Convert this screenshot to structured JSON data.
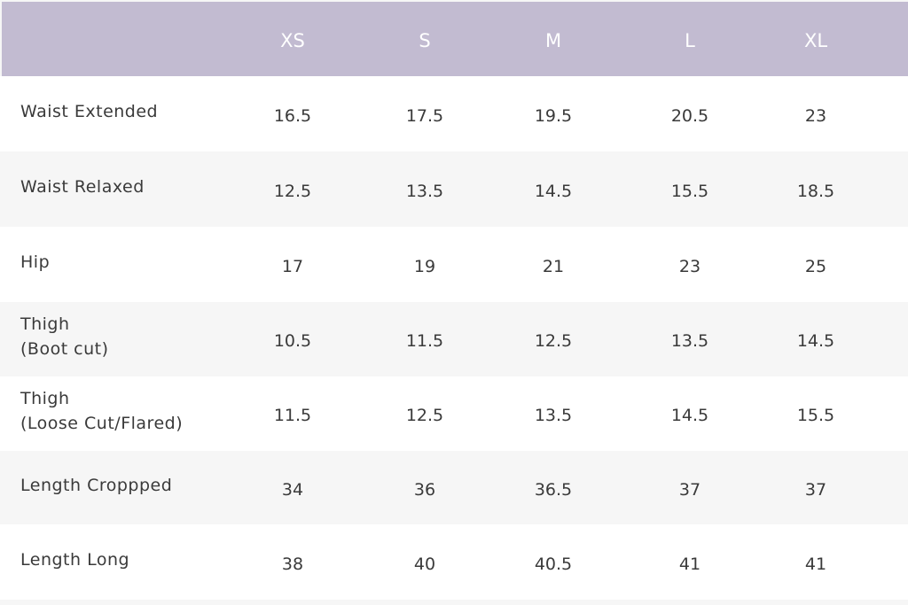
{
  "table": {
    "header": [
      "XS",
      "S",
      "M",
      "L",
      "XL"
    ],
    "rows": [
      {
        "label": [
          "Waist Extended"
        ],
        "values": [
          16.5,
          17.5,
          19.5,
          20.5,
          23
        ]
      },
      {
        "label": [
          "Waist Relaxed"
        ],
        "values": [
          12.5,
          13.5,
          14.5,
          15.5,
          18.5
        ]
      },
      {
        "label": [
          "Hip"
        ],
        "values": [
          17,
          19,
          21,
          23,
          25
        ]
      },
      {
        "label": [
          "Thigh",
          "(Boot cut)"
        ],
        "values": [
          10.5,
          11.5,
          12.5,
          13.5,
          14.5
        ]
      },
      {
        "label": [
          "Thigh",
          "(Loose Cut/Flared)"
        ],
        "values": [
          11.5,
          12.5,
          13.5,
          14.5,
          15.5
        ]
      },
      {
        "label": [
          "Length Croppped"
        ],
        "values": [
          34,
          36,
          36.5,
          37,
          37
        ]
      },
      {
        "label": [
          "Length Long"
        ],
        "values": [
          38,
          40,
          40.5,
          41,
          41
        ]
      }
    ]
  }
}
